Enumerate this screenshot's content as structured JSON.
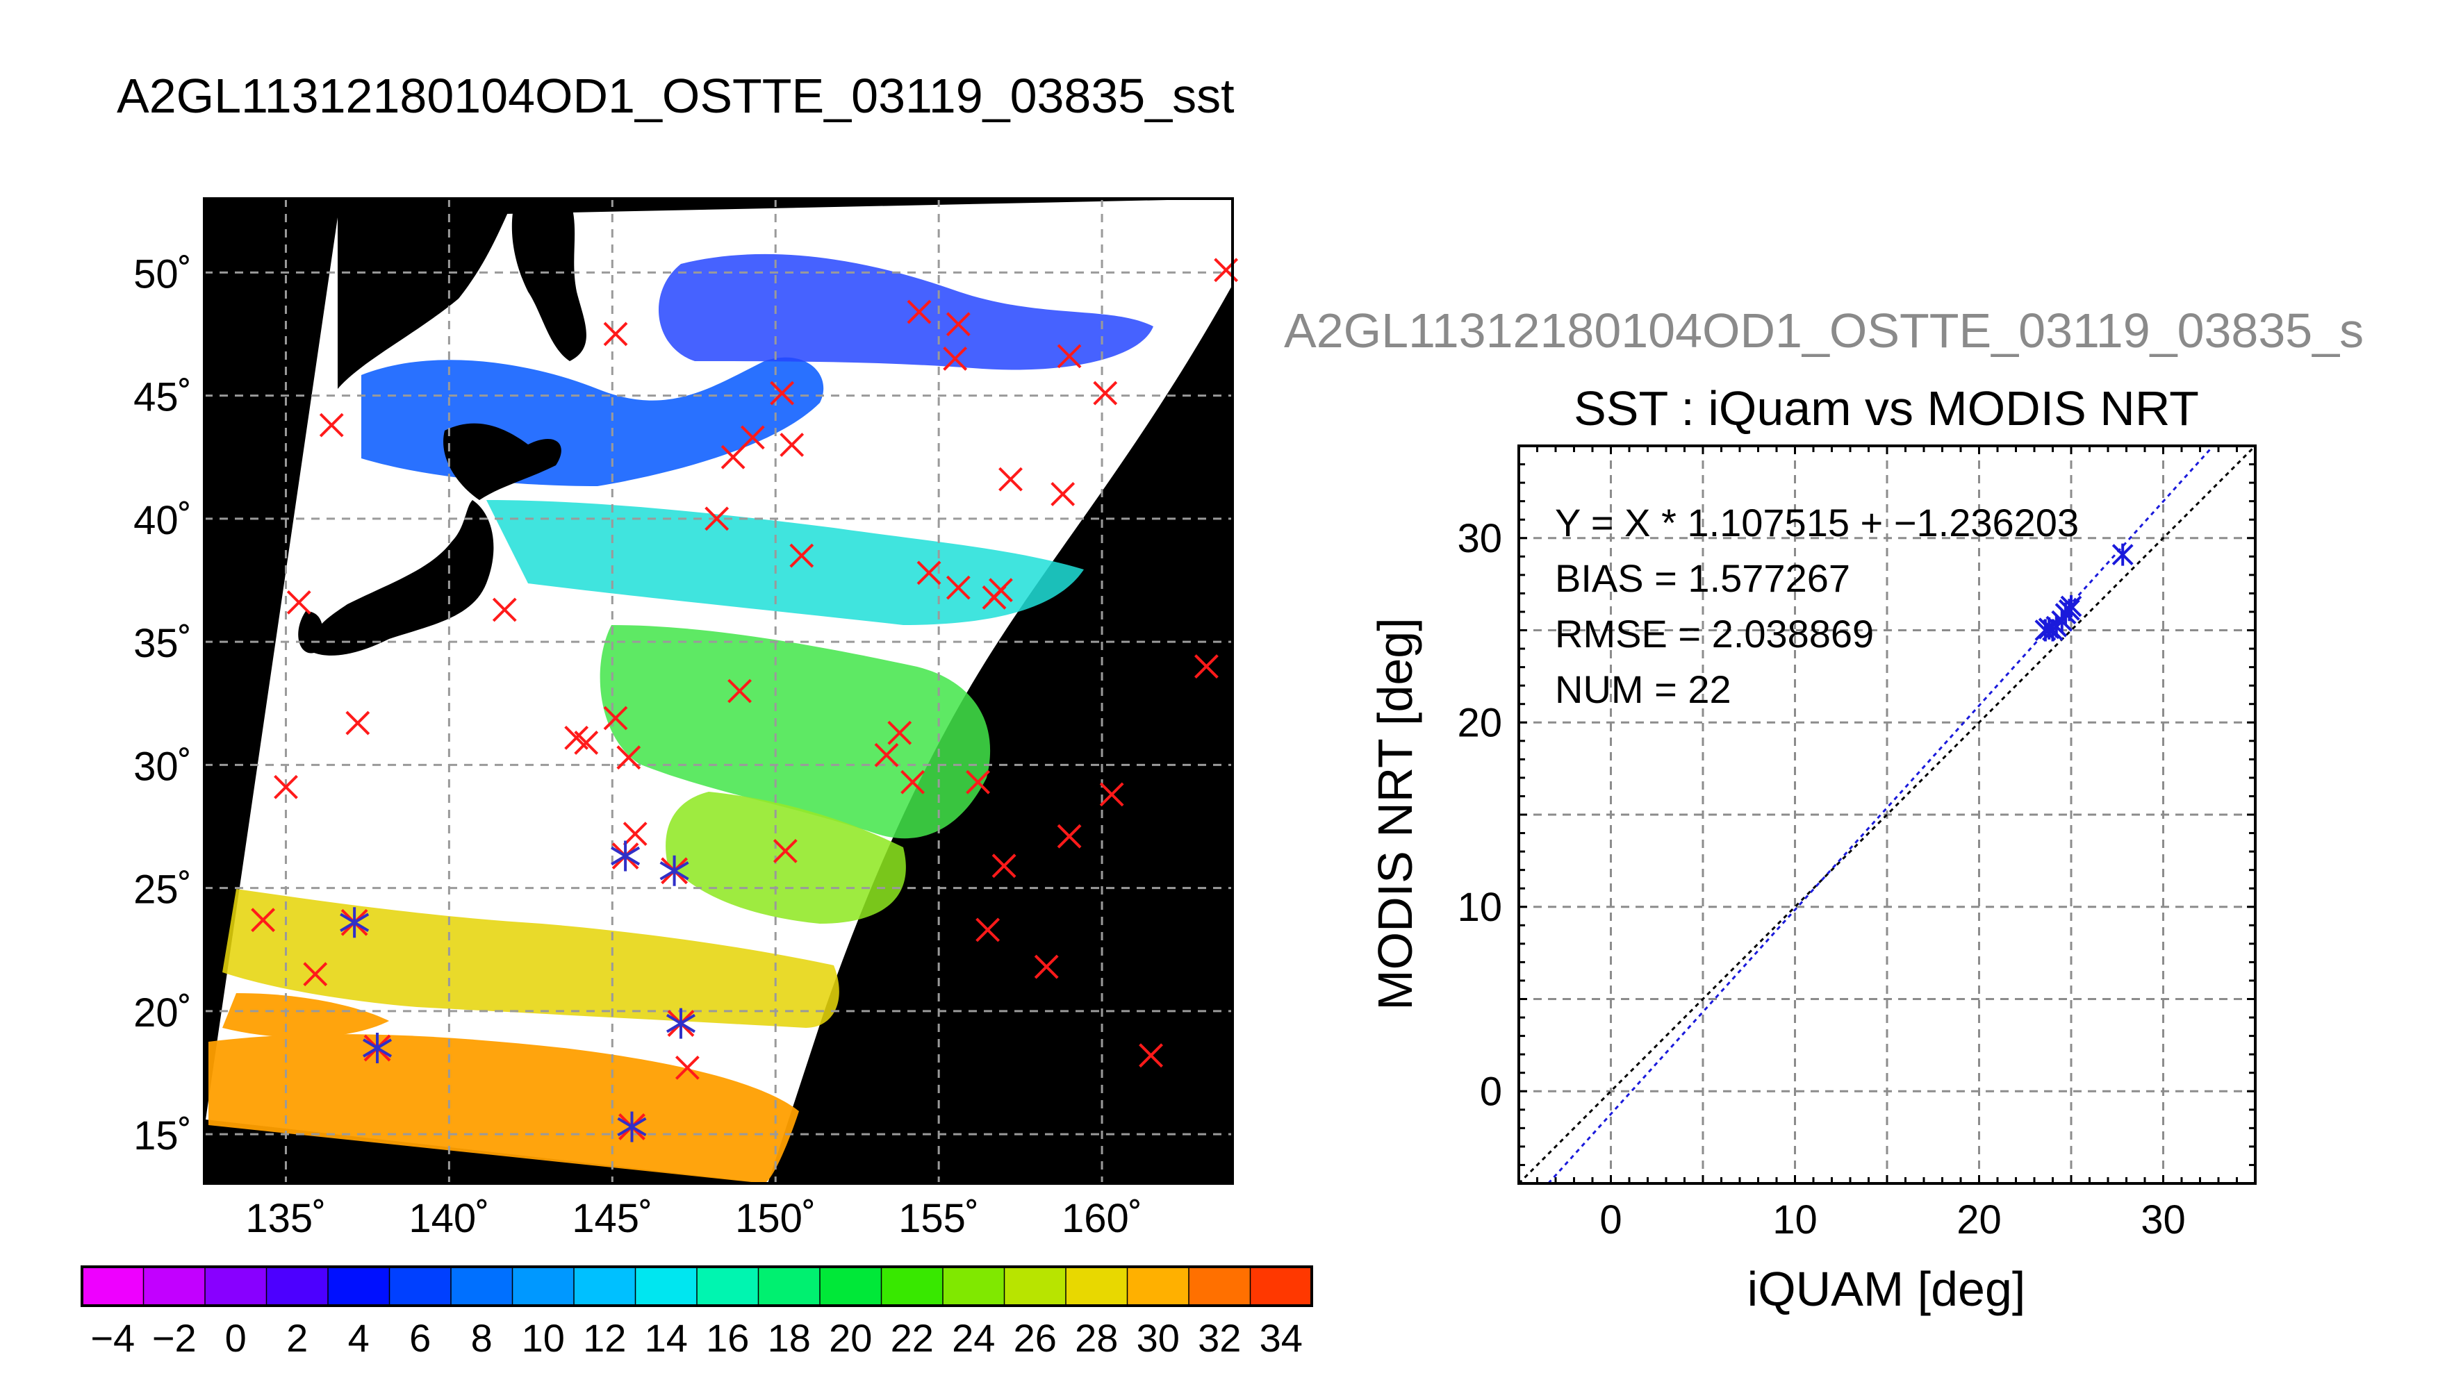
{
  "page_title": "A2GL11312180104OD1_OSTTE_03119_03835_sst",
  "right_title": "A2GL11312180104OD1_OSTTE_03119_03835_s",
  "map": {
    "lat_labels": [
      "15˚",
      "20˚",
      "25˚",
      "30˚",
      "35˚",
      "40˚",
      "45˚",
      "50˚"
    ],
    "lon_labels": [
      "135˚",
      "140˚",
      "145˚",
      "150˚",
      "155˚",
      "160˚"
    ],
    "lat_values": [
      15,
      20,
      25,
      30,
      35,
      40,
      45,
      50
    ],
    "lon_values": [
      135,
      140,
      145,
      150,
      155,
      160
    ],
    "lon_range": [
      132.5,
      164
    ],
    "lat_range": [
      13,
      53
    ],
    "matched_markers": [
      [
        145.4,
        26.3
      ],
      [
        146.9,
        25.7
      ],
      [
        147.1,
        19.5
      ],
      [
        145.6,
        15.3
      ],
      [
        137.1,
        23.6
      ],
      [
        137.8,
        18.5
      ]
    ],
    "unmatched_markers": [
      [
        145.1,
        47.5
      ],
      [
        136.4,
        43.8
      ],
      [
        148.7,
        42.5
      ],
      [
        149.3,
        43.3
      ],
      [
        150.2,
        45.1
      ],
      [
        150.5,
        43.0
      ],
      [
        148.2,
        40.0
      ],
      [
        150.8,
        38.5
      ],
      [
        141.7,
        36.3
      ],
      [
        135.4,
        36.6
      ],
      [
        137.2,
        31.7
      ],
      [
        143.9,
        31.1
      ],
      [
        144.2,
        30.9
      ],
      [
        145.1,
        31.9
      ],
      [
        145.5,
        30.3
      ],
      [
        148.9,
        33.0
      ],
      [
        150.3,
        26.5
      ],
      [
        145.7,
        27.2
      ],
      [
        147.3,
        17.7
      ],
      [
        135.0,
        29.1
      ],
      [
        134.3,
        23.7
      ],
      [
        135.9,
        21.5
      ],
      [
        153.4,
        30.4
      ],
      [
        153.8,
        31.3
      ],
      [
        154.2,
        29.3
      ],
      [
        156.2,
        29.3
      ],
      [
        156.5,
        23.3
      ],
      [
        157.0,
        25.9
      ],
      [
        158.3,
        21.8
      ],
      [
        159.0,
        27.1
      ],
      [
        160.3,
        28.8
      ],
      [
        161.5,
        18.2
      ],
      [
        163.2,
        34.0
      ],
      [
        163.8,
        50.1
      ],
      [
        154.4,
        48.4
      ],
      [
        155.6,
        47.9
      ],
      [
        155.5,
        46.5
      ],
      [
        159.0,
        46.6
      ],
      [
        160.1,
        45.1
      ],
      [
        157.2,
        41.6
      ],
      [
        158.8,
        41.0
      ],
      [
        154.7,
        37.8
      ],
      [
        155.6,
        37.2
      ],
      [
        156.9,
        37.1
      ],
      [
        156.7,
        36.8
      ]
    ]
  },
  "colorbar": {
    "tick_labels": [
      "−4",
      "−2",
      "0",
      "2",
      "4",
      "6",
      "8",
      "10",
      "12",
      "14",
      "16",
      "18",
      "20",
      "22",
      "24",
      "26",
      "28",
      "30",
      "32",
      "34"
    ],
    "colors": [
      "#ee00ff",
      "#c200ff",
      "#8800ff",
      "#4c00ff",
      "#0010ff",
      "#0040ff",
      "#0070ff",
      "#0098ff",
      "#00c0ff",
      "#00e6f0",
      "#00f5b0",
      "#00f070",
      "#00e838",
      "#38e800",
      "#80e800",
      "#b8e400",
      "#e8d800",
      "#ffb000",
      "#ff7000",
      "#ff3800"
    ]
  },
  "stats": {
    "equation": "Y = X * 1.107515 + −1.236203",
    "bias": "BIAS = 1.577267",
    "rmse": "RMSE = 2.038869",
    "num": "NUM = 22"
  },
  "chart_data": {
    "type": "scatter",
    "title": "SST : iQuam vs MODIS NRT",
    "xlabel": "iQUAM [deg]",
    "ylabel": "MODIS NRT [deg]",
    "xlim": [
      -5,
      35
    ],
    "ylim": [
      -5,
      35
    ],
    "x_ticks": [
      0,
      10,
      20,
      30
    ],
    "y_ticks": [
      0,
      10,
      20,
      30
    ],
    "x_tick_labels": [
      "0",
      "10",
      "20",
      "30"
    ],
    "y_tick_labels": [
      "0",
      "10",
      "20",
      "30"
    ],
    "grid": true,
    "series": [
      {
        "color": "#1a1adb",
        "x": [
          23.6,
          23.8,
          24.0,
          24.2,
          24.5,
          24.7,
          24.9,
          25.0,
          27.8
        ],
        "y": [
          25.0,
          25.1,
          25.0,
          25.2,
          25.5,
          25.9,
          26.1,
          26.3,
          29.1
        ]
      }
    ],
    "fit_line": {
      "slope": 1.107515,
      "intercept": -1.236203,
      "color": "#1a1adb"
    },
    "identity_line": {
      "slope": 1,
      "intercept": 0,
      "color": "#000000"
    }
  }
}
